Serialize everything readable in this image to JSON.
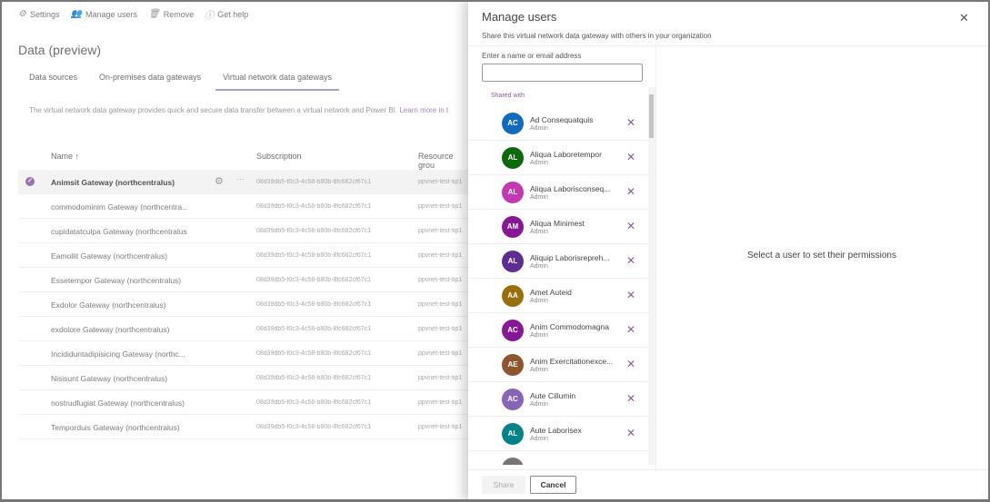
{
  "toolbar": {
    "settings": "Settings",
    "manage_users": "Manage users",
    "remove": "Remove",
    "get_help": "Get help"
  },
  "page_title": "Data (preview)",
  "tabs": [
    {
      "label": "Data sources"
    },
    {
      "label": "On-premises data gateways"
    },
    {
      "label": "Virtual network data gateways",
      "active": true
    }
  ],
  "description": "The virtual network data gateway provides quick and secure data transfer between a virtual network and Power BI.",
  "learn_more": "Learn more in t",
  "table": {
    "headers": {
      "name": "Name ↑",
      "subscription": "Subscription",
      "resource_group": "Resource grou"
    },
    "rows": [
      {
        "name": "Animsit Gateway (northcentralus)",
        "subscription": "08d39db5-f0c3-4c58-b80b-8fc682cf67c1",
        "rg": "ppvnet-test-tip1",
        "selected": true
      },
      {
        "name": "commodominim Gateway (northcentra...",
        "subscription": "08d39db5-f0c3-4c58-b80b-8fc682cf67c1",
        "rg": "ppvnet-test-tip1"
      },
      {
        "name": "cupidatatculpa Gateway (northcentralus)",
        "subscription": "08d39db5-f0c3-4c58-b80b-8fc682cf67c1",
        "rg": "ppvnet-test-tip1"
      },
      {
        "name": "Eamollit Gateway (northcentralus)",
        "subscription": "08d39db5-f0c3-4c58-b80b-8fc682cf67c1",
        "rg": "ppvnet-test-tip1"
      },
      {
        "name": "Essetempor Gateway (northcentralus)",
        "subscription": "08d39db5-f0c3-4c58-b80b-8fc682cf67c1",
        "rg": "ppvnet-test-tip1"
      },
      {
        "name": "Exdolor Gateway (northcentralus)",
        "subscription": "08d39db5-f0c3-4c58-b80b-8fc682cf67c1",
        "rg": "ppvnet-test-tip1"
      },
      {
        "name": "exdolore Gateway (northcentralus)",
        "subscription": "08d39db5-f0c3-4c58-b80b-8fc682cf67c1",
        "rg": "ppvnet-test-tip1"
      },
      {
        "name": "Incididuntadipisicing Gateway (northc...",
        "subscription": "08d39db5-f0c3-4c58-b80b-8fc682cf67c1",
        "rg": "ppvnet-test-tip1"
      },
      {
        "name": "Nisisunt Gateway (northcentralus)",
        "subscription": "08d39db5-f0c3-4c58-b80b-8fc682cf67c1",
        "rg": "ppvnet-test-tip1"
      },
      {
        "name": "nostrudfugiat Gateway (northcentralus)",
        "subscription": "08d39db5-f0c3-4c58-b80b-8fc682cf67c1",
        "rg": "ppvnet-test-tip1"
      },
      {
        "name": "Temporduis Gateway (northcentralus)",
        "subscription": "08d39db5-f0c3-4c58-b80b-8fc682cf67c1",
        "rg": "ppvnet-test-tip1"
      }
    ]
  },
  "panel": {
    "title": "Manage users",
    "subtitle": "Share this virtual network data gateway with others in your organization",
    "input_label": "Enter a name or email address",
    "input_value": "",
    "shared_with": "Shared with",
    "empty_message": "Select a user to set their permissions",
    "share": "Share",
    "cancel": "Cancel",
    "users": [
      {
        "initials": "AC",
        "name": "Ad Consequatquis",
        "role": "Admin",
        "color": "#0f6cbd"
      },
      {
        "initials": "AL",
        "name": "Aliqua Laboretempor",
        "role": "Admin",
        "color": "#0b6a0b"
      },
      {
        "initials": "AL",
        "name": "Aliqua Laborisconseq...",
        "role": "Admin",
        "color": "#c239b3"
      },
      {
        "initials": "AM",
        "name": "Aliqua Minimest",
        "role": "Admin",
        "color": "#881798"
      },
      {
        "initials": "AL",
        "name": "Aliquip Laborisrepreh...",
        "role": "Admin",
        "color": "#5c2e91"
      },
      {
        "initials": "AA",
        "name": "Amet Auteid",
        "role": "Admin",
        "color": "#986f0b"
      },
      {
        "initials": "AC",
        "name": "Anim Commodomagna",
        "role": "Admin",
        "color": "#881798"
      },
      {
        "initials": "AE",
        "name": "Anim Exercitationexce...",
        "role": "Admin",
        "color": "#8e562e"
      },
      {
        "initials": "AC",
        "name": "Aute Cillumin",
        "role": "Admin",
        "color": "#8764b8"
      },
      {
        "initials": "AL",
        "name": "Aute Laborisex",
        "role": "Admin",
        "color": "#038387"
      },
      {
        "initials": "",
        "name": "",
        "role": "",
        "color": "#7a7574"
      }
    ]
  }
}
